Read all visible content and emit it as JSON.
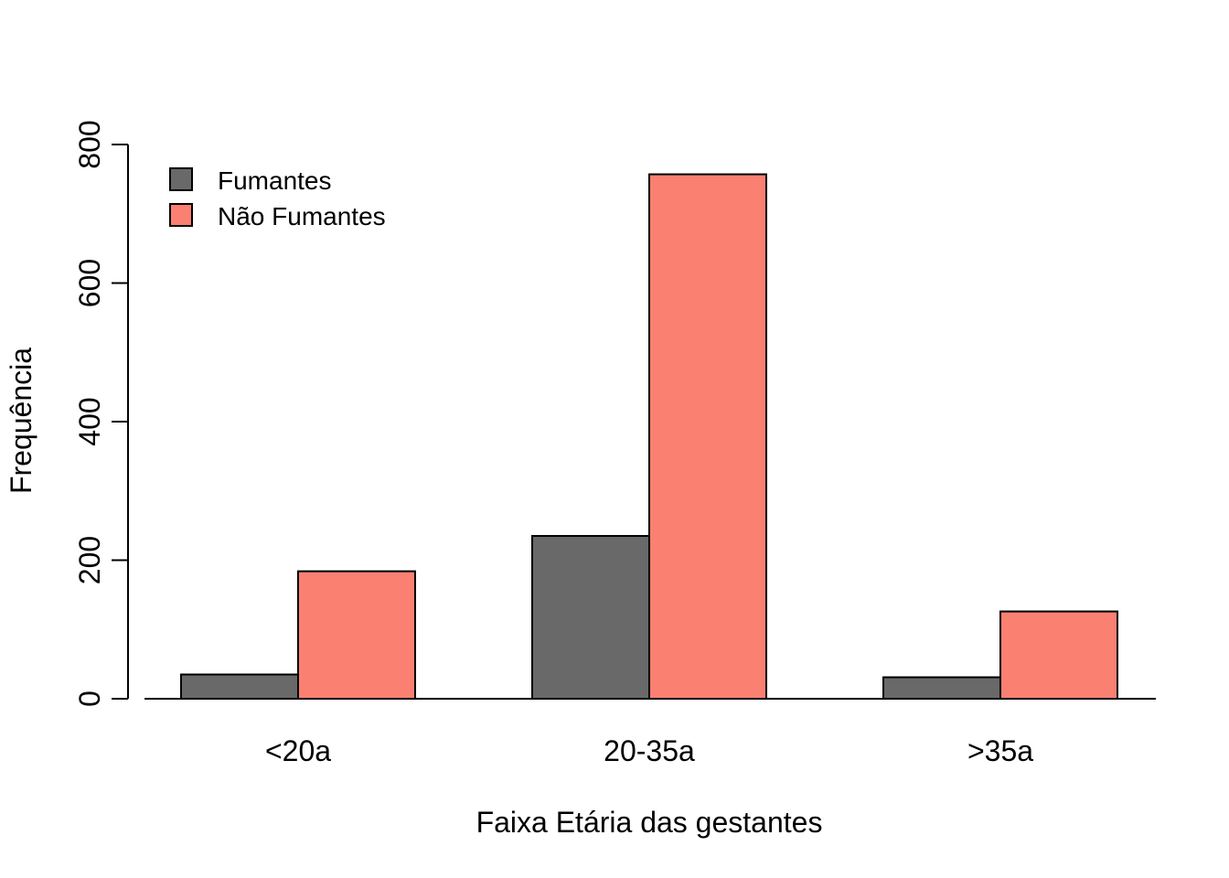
{
  "chart_data": {
    "type": "bar",
    "layout": "grouped",
    "categories": [
      "<20a",
      "20-35a",
      ">35a"
    ],
    "series": [
      {
        "name": "Fumantes",
        "color": "#696969",
        "values": [
          35,
          235,
          31
        ]
      },
      {
        "name": "Não Fumantes",
        "color": "#FA8072",
        "values": [
          184,
          757,
          126
        ]
      }
    ],
    "title": "",
    "xlabel": "Faixa Etária das gestantes",
    "ylabel": "Frequência",
    "ylim": [
      0,
      800
    ],
    "yticks": [
      "0",
      "200",
      "400",
      "600",
      "800"
    ],
    "grid": false,
    "legend_position": "top-left"
  }
}
